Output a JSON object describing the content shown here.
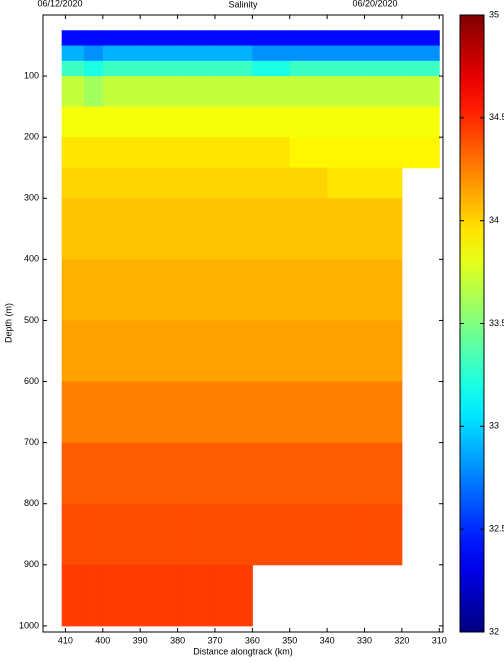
{
  "chart_data": {
    "type": "heatmap",
    "title": "Salinity",
    "start_date": "06/12/2020",
    "end_date": "06/20/2020",
    "xlabel": "Distance alongtrack (km)",
    "ylabel": "Depth (m)",
    "xlim": [
      416,
      309
    ],
    "ylim": [
      0,
      1010
    ],
    "xticks": [
      410,
      400,
      390,
      380,
      370,
      360,
      350,
      340,
      330,
      320,
      310
    ],
    "yticks": [
      100,
      200,
      300,
      400,
      500,
      600,
      700,
      800,
      900,
      1000
    ],
    "x_edges": [
      411,
      405,
      400,
      390,
      380,
      370,
      360,
      350,
      340,
      330,
      320,
      310
    ],
    "y_edges": [
      25,
      50,
      75,
      100,
      150,
      200,
      250,
      300,
      400,
      500,
      600,
      700,
      800,
      900,
      1000
    ],
    "values": [
      [
        32.4,
        32.4,
        32.4,
        32.4,
        32.4,
        32.4,
        32.4,
        32.4,
        32.4,
        32.4,
        32.4
      ],
      [
        32.9,
        32.8,
        32.9,
        32.9,
        32.9,
        32.9,
        32.8,
        32.8,
        32.8,
        32.8,
        32.8
      ],
      [
        33.3,
        33.2,
        33.3,
        33.3,
        33.3,
        33.3,
        33.2,
        33.3,
        33.3,
        33.3,
        33.3
      ],
      [
        33.7,
        33.6,
        33.7,
        33.7,
        33.7,
        33.7,
        33.7,
        33.7,
        33.7,
        33.7,
        33.7
      ],
      [
        33.85,
        33.85,
        33.85,
        33.85,
        33.85,
        33.85,
        33.85,
        33.85,
        33.85,
        33.85,
        33.85
      ],
      [
        33.95,
        33.95,
        33.95,
        33.95,
        33.95,
        33.95,
        33.95,
        33.9,
        33.9,
        33.9,
        33.9
      ],
      [
        34.0,
        34.0,
        34.0,
        34.0,
        34.0,
        34.0,
        34.0,
        34.0,
        33.95,
        33.95,
        null
      ],
      [
        34.05,
        34.05,
        34.05,
        34.05,
        34.05,
        34.05,
        34.05,
        34.05,
        34.05,
        34.05,
        null
      ],
      [
        34.1,
        34.1,
        34.1,
        34.1,
        34.1,
        34.1,
        34.1,
        34.1,
        34.1,
        34.1,
        null
      ],
      [
        34.15,
        34.15,
        34.15,
        34.15,
        34.15,
        34.15,
        34.15,
        34.15,
        34.15,
        34.15,
        null
      ],
      [
        34.25,
        34.25,
        34.25,
        34.25,
        34.25,
        34.25,
        34.25,
        34.25,
        34.25,
        34.25,
        null
      ],
      [
        34.35,
        34.35,
        34.35,
        34.35,
        34.35,
        34.35,
        34.35,
        34.35,
        34.35,
        34.35,
        null
      ],
      [
        34.4,
        34.4,
        34.4,
        34.4,
        34.4,
        34.4,
        34.4,
        34.4,
        34.4,
        34.4,
        null
      ],
      [
        34.45,
        34.45,
        34.45,
        34.45,
        34.45,
        34.45,
        null,
        null,
        null,
        null,
        null
      ]
    ],
    "clim": [
      32,
      35
    ],
    "cticks": [
      32,
      32.5,
      33,
      33.5,
      34,
      34.5,
      35
    ],
    "colormap": "jet"
  }
}
